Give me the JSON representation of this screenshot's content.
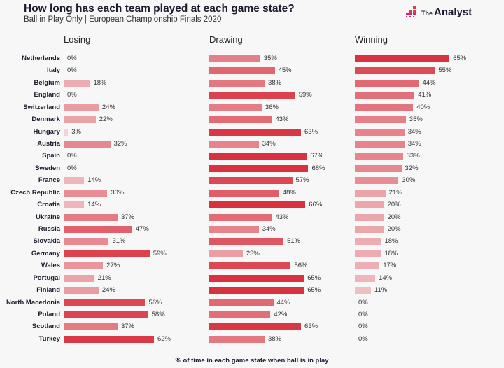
{
  "header": {
    "title": "How long has each team played at each game state?",
    "subtitle": "Ball in Play Only | European Championship Finals 2020",
    "brand_small": "The",
    "brand": "Analyst"
  },
  "chart_data": {
    "type": "bar",
    "orientation": "horizontal",
    "title": "How long has each team played at each game state?",
    "subtitle": "Ball in Play Only | European Championship Finals 2020",
    "xlabel": "% of time in each game state when ball is in play",
    "categories": [
      "Netherlands",
      "Italy",
      "Belgium",
      "England",
      "Switzerland",
      "Denmark",
      "Hungary",
      "Austria",
      "Spain",
      "Sweden",
      "France",
      "Czech Republic",
      "Croatia",
      "Ukraine",
      "Russia",
      "Slovakia",
      "Germany",
      "Wales",
      "Portugal",
      "Finland",
      "North Macedonia",
      "Poland",
      "Scotland",
      "Turkey"
    ],
    "series": [
      {
        "name": "Losing",
        "values": [
          0,
          0,
          18,
          0,
          24,
          22,
          3,
          32,
          0,
          0,
          14,
          30,
          14,
          37,
          47,
          31,
          59,
          27,
          21,
          24,
          56,
          58,
          37,
          62
        ]
      },
      {
        "name": "Drawing",
        "values": [
          35,
          45,
          38,
          59,
          36,
          43,
          63,
          34,
          67,
          68,
          57,
          48,
          66,
          43,
          34,
          51,
          23,
          56,
          65,
          65,
          44,
          42,
          63,
          38
        ]
      },
      {
        "name": "Winning",
        "values": [
          65,
          55,
          44,
          41,
          40,
          35,
          34,
          34,
          33,
          32,
          30,
          21,
          20,
          20,
          20,
          18,
          18,
          17,
          14,
          11,
          0,
          0,
          0,
          0
        ]
      }
    ],
    "value_suffix": "%",
    "xlim": [
      0,
      70
    ],
    "colors": {
      "low": "#f3d3d6",
      "high": "#d8323f"
    }
  }
}
